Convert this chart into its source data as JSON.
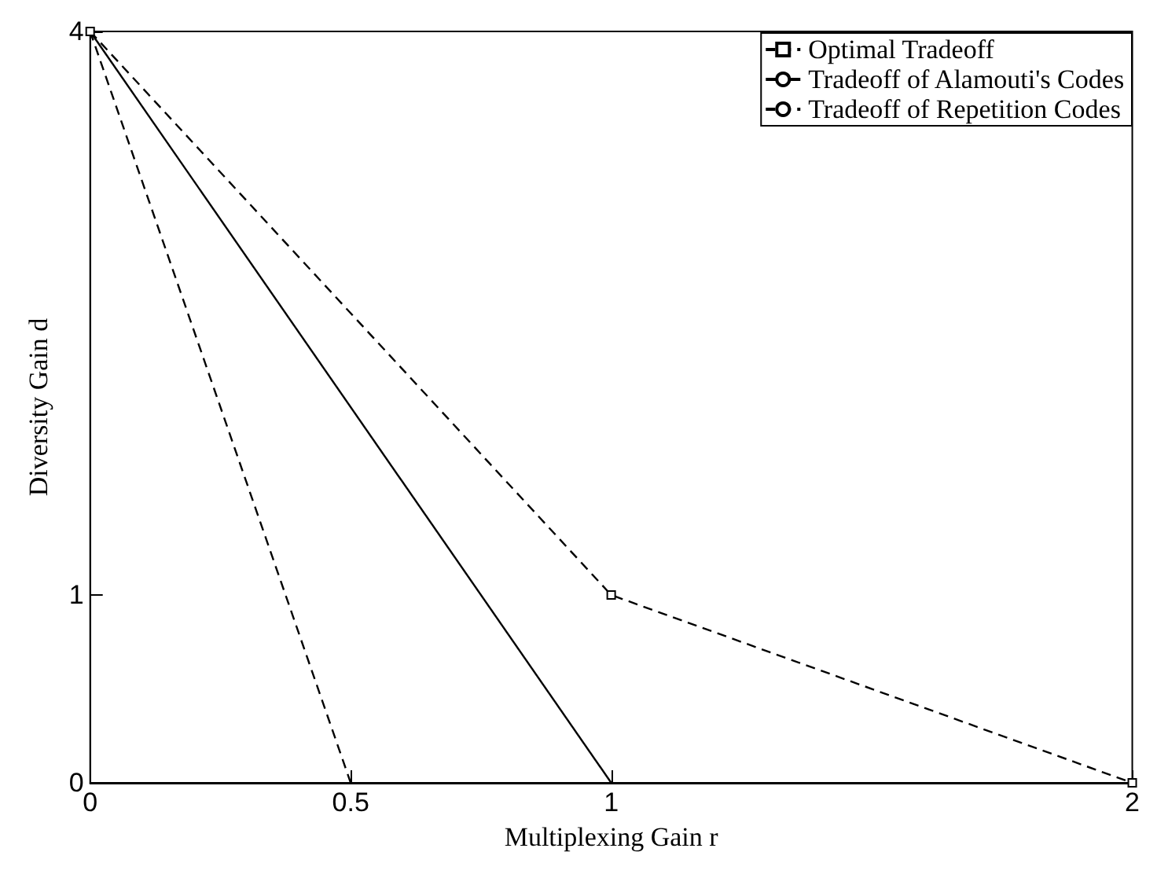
{
  "chart_data": {
    "type": "line",
    "xlabel": "Multiplexing Gain r",
    "ylabel": "Diversity Gain d",
    "xlim": [
      0,
      2
    ],
    "xticks": [
      0,
      0.5,
      1,
      2
    ],
    "ylim": [
      0,
      4
    ],
    "yticks": [
      0,
      1,
      4
    ],
    "grid": false,
    "legend": "top right",
    "series": [
      {
        "name": "Optimal Tradeoff",
        "color": "#000000",
        "x": [
          0,
          1,
          2
        ],
        "values": [
          4,
          1,
          0
        ],
        "marker": "square",
        "line_style": "dashed"
      },
      {
        "name": "Tradeoff of Alamouti's Codes",
        "color": "#000000",
        "x": [
          0,
          1
        ],
        "values": [
          4,
          0
        ],
        "marker": "none",
        "line_style": "solid"
      },
      {
        "name": "Tradeoff of Repetition Codes",
        "color": "#000000",
        "x": [
          0,
          0.5
        ],
        "values": [
          4,
          0
        ],
        "marker": "none",
        "line_style": "dashed"
      }
    ]
  }
}
